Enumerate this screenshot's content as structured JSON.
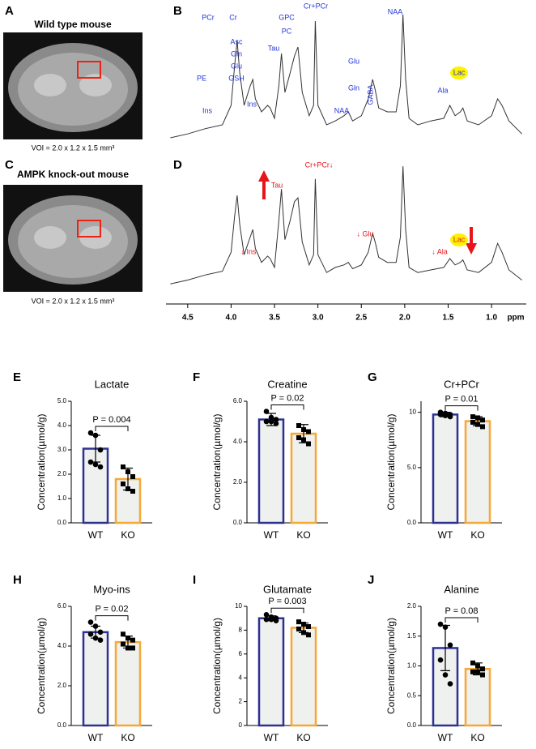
{
  "figure": {
    "panel_labels": [
      "A",
      "B",
      "C",
      "D",
      "E",
      "F",
      "G",
      "H",
      "I",
      "J"
    ],
    "images": [
      {
        "title": "Wild type mouse",
        "caption": "VOI = 2.0 x 1.2 x 1.5 mm³"
      },
      {
        "title": "AMPK knock-out mouse",
        "caption": "VOI = 2.0 x 1.2 x 1.5 mm³"
      }
    ]
  },
  "chart_data": [
    {
      "type": "spectrum",
      "color": "#333333",
      "xlim": [
        4.75,
        0.6
      ],
      "ylim": [
        0,
        100
      ],
      "x": [
        4.7,
        4.5,
        4.3,
        4.1,
        4.0,
        3.96,
        3.93,
        3.9,
        3.85,
        3.78,
        3.75,
        3.72,
        3.65,
        3.58,
        3.55,
        3.5,
        3.45,
        3.42,
        3.38,
        3.32,
        3.27,
        3.23,
        3.18,
        3.1,
        3.05,
        3.03,
        3.0,
        2.9,
        2.8,
        2.7,
        2.65,
        2.6,
        2.5,
        2.42,
        2.37,
        2.34,
        2.3,
        2.2,
        2.1,
        2.05,
        2.02,
        1.99,
        1.95,
        1.85,
        1.7,
        1.55,
        1.48,
        1.42,
        1.36,
        1.33,
        1.28,
        1.15,
        1.0,
        0.93,
        0.88,
        0.8,
        0.65
      ],
      "values": [
        5,
        8,
        12,
        15,
        30,
        60,
        80,
        55,
        30,
        45,
        50,
        35,
        25,
        30,
        28,
        20,
        45,
        70,
        40,
        55,
        68,
        75,
        40,
        22,
        30,
        95,
        30,
        15,
        18,
        22,
        25,
        18,
        22,
        35,
        50,
        42,
        28,
        25,
        25,
        45,
        100,
        50,
        20,
        15,
        18,
        20,
        30,
        22,
        25,
        28,
        18,
        15,
        22,
        35,
        30,
        18,
        8
      ],
      "annotations": [
        "PCr",
        "Cr",
        "PE",
        "Asc",
        "Gln",
        "Glu",
        "GSH",
        "Ins",
        "Ins",
        "Tau",
        "GPC",
        "PC",
        "Cr+PCr",
        "NAA",
        "Glu",
        "Gln",
        "GABA",
        "NAA",
        "Ala",
        "Lac"
      ],
      "annotation_color": "#2233dd"
    },
    {
      "type": "spectrum",
      "color": "#333333",
      "xlim": [
        4.75,
        0.6
      ],
      "ylim": [
        0,
        100
      ],
      "x_label": "ppm",
      "x": [
        4.7,
        4.5,
        4.3,
        4.1,
        4.0,
        3.96,
        3.93,
        3.9,
        3.85,
        3.78,
        3.75,
        3.72,
        3.65,
        3.58,
        3.55,
        3.5,
        3.45,
        3.42,
        3.38,
        3.32,
        3.27,
        3.23,
        3.18,
        3.1,
        3.05,
        3.03,
        3.0,
        2.9,
        2.8,
        2.7,
        2.65,
        2.6,
        2.5,
        2.42,
        2.37,
        2.34,
        2.3,
        2.2,
        2.1,
        2.05,
        2.02,
        1.99,
        1.95,
        1.85,
        1.7,
        1.55,
        1.48,
        1.42,
        1.36,
        1.33,
        1.28,
        1.15,
        1.0,
        0.93,
        0.88,
        0.8,
        0.65
      ],
      "values": [
        5,
        8,
        12,
        15,
        30,
        58,
        75,
        52,
        28,
        42,
        48,
        33,
        22,
        27,
        25,
        18,
        55,
        80,
        40,
        55,
        70,
        73,
        38,
        20,
        28,
        88,
        28,
        14,
        18,
        20,
        22,
        17,
        20,
        30,
        45,
        38,
        26,
        22,
        22,
        42,
        98,
        48,
        18,
        14,
        16,
        18,
        25,
        20,
        22,
        24,
        16,
        14,
        22,
        37,
        30,
        16,
        8
      ],
      "xticks": [
        4.5,
        {
          "value": 4,
          "label": "4.0"
        },
        3.5,
        {
          "value": 3,
          "label": "3.0"
        },
        2.5,
        {
          "value": 2,
          "label": "2.0"
        },
        1.5,
        {
          "value": 1,
          "label": "1.0"
        }
      ],
      "annotations": [
        "Tau",
        "Cr+PCr↓",
        "↓ Ins",
        "↓ Glu",
        "↓ Ala",
        "Lac"
      ],
      "annotation_color": "#e8141b"
    },
    {
      "type": "bar",
      "title": "Lactate",
      "y_label": "Concentration(µmol/g)",
      "categories": [
        "WT",
        "KO"
      ],
      "values": [
        3.05,
        1.8
      ],
      "errors": [
        0.55,
        0.45
      ],
      "points": [
        [
          3.7,
          3.6,
          3.0,
          2.5,
          2.4,
          2.3
        ],
        [
          2.3,
          2.1,
          1.9,
          1.6,
          1.4,
          1.3
        ]
      ],
      "colors": [
        "#2e3192",
        "#f7a736"
      ],
      "fill": "#eef1ee",
      "annotation": "P = 0.004",
      "ylim": [
        0,
        5
      ],
      "yticks": [
        {
          "value": 0,
          "label": "0.0"
        },
        {
          "value": 1,
          "label": "1.0"
        },
        {
          "value": 2,
          "label": "2.0"
        },
        {
          "value": 3,
          "label": "3.0"
        },
        {
          "value": 4,
          "label": "4.0"
        },
        {
          "value": 5,
          "label": "5.0"
        }
      ]
    },
    {
      "type": "bar",
      "title": "Creatine",
      "y_label": "Concentration(µmol/g)",
      "categories": [
        "WT",
        "KO"
      ],
      "values": [
        5.1,
        4.4
      ],
      "errors": [
        0.3,
        0.45
      ],
      "points": [
        [
          5.5,
          5.2,
          5.1,
          5.0,
          5.0,
          4.9
        ],
        [
          4.8,
          4.6,
          4.5,
          4.2,
          4.1,
          3.9
        ]
      ],
      "colors": [
        "#2e3192",
        "#f7a736"
      ],
      "fill": "#eef1ee",
      "annotation": "P = 0.02",
      "ylim": [
        0,
        6
      ],
      "yticks": [
        {
          "value": 0,
          "label": "0.0"
        },
        {
          "value": 2,
          "label": "2.0"
        },
        {
          "value": 4,
          "label": "4.0"
        },
        {
          "value": 6,
          "label": "6.0"
        }
      ]
    },
    {
      "type": "bar",
      "title": "Cr+PCr",
      "y_label": "Concentration(µmol/g)",
      "categories": [
        "WT",
        "KO"
      ],
      "values": [
        9.8,
        9.2
      ],
      "errors": [
        0.2,
        0.4
      ],
      "points": [
        [
          10.0,
          9.9,
          9.8,
          9.8,
          9.7,
          9.6
        ],
        [
          9.6,
          9.5,
          9.3,
          9.1,
          8.9,
          8.7
        ]
      ],
      "colors": [
        "#2e3192",
        "#f7a736"
      ],
      "fill": "#eef1ee",
      "annotation": "P = 0.01",
      "ylim": [
        0,
        11
      ],
      "yticks": [
        {
          "value": 0,
          "label": "0.0"
        },
        {
          "value": 5,
          "label": "5.0"
        },
        10
      ]
    },
    {
      "type": "bar",
      "title": "Myo-ins",
      "y_label": "Concentration(µmol/g)",
      "categories": [
        "WT",
        "KO"
      ],
      "values": [
        4.7,
        4.2
      ],
      "errors": [
        0.3,
        0.3
      ],
      "points": [
        [
          5.2,
          5.0,
          4.7,
          4.6,
          4.4,
          4.3
        ],
        [
          4.6,
          4.4,
          4.3,
          4.1,
          3.9,
          3.9
        ]
      ],
      "colors": [
        "#2e3192",
        "#f7a736"
      ],
      "fill": "#eef1ee",
      "annotation": "P = 0.02",
      "ylim": [
        0,
        6
      ],
      "yticks": [
        {
          "value": 0,
          "label": "0.0"
        },
        {
          "value": 2,
          "label": "2.0"
        },
        {
          "value": 4,
          "label": "4.0"
        },
        {
          "value": 6,
          "label": "6.0"
        }
      ]
    },
    {
      "type": "bar",
      "title": "Glutamate",
      "y_label": "Concentration(µmol/g)",
      "categories": [
        "WT",
        "KO"
      ],
      "values": [
        9.0,
        8.2
      ],
      "errors": [
        0.2,
        0.4
      ],
      "points": [
        [
          9.3,
          9.1,
          9.0,
          8.9,
          8.9,
          8.8
        ],
        [
          8.7,
          8.5,
          8.3,
          8.1,
          7.8,
          7.6
        ]
      ],
      "colors": [
        "#2e3192",
        "#f7a736"
      ],
      "fill": "#eef1ee",
      "annotation": "P = 0.003",
      "ylim": [
        0,
        10
      ],
      "yticks": [
        0,
        2,
        4,
        6,
        8,
        10
      ]
    },
    {
      "type": "bar",
      "title": "Alanine",
      "y_label": "Concentration(µmol/g)",
      "categories": [
        "WT",
        "KO"
      ],
      "values": [
        1.3,
        0.95
      ],
      "errors": [
        0.38,
        0.1
      ],
      "points": [
        [
          1.7,
          1.65,
          1.35,
          1.1,
          0.85,
          0.7
        ],
        [
          1.05,
          1.0,
          0.95,
          0.9,
          0.9,
          0.85
        ]
      ],
      "colors": [
        "#2e3192",
        "#f7a736"
      ],
      "fill": "#eef1ee",
      "annotation": "P = 0.08",
      "ylim": [
        0,
        2
      ],
      "yticks": [
        {
          "value": 0,
          "label": "0.0"
        },
        {
          "value": 0.5,
          "label": "0.5"
        },
        {
          "value": 1,
          "label": "1.0"
        },
        {
          "value": 1.5,
          "label": "1.5"
        },
        {
          "value": 2,
          "label": "2.0"
        }
      ]
    }
  ]
}
